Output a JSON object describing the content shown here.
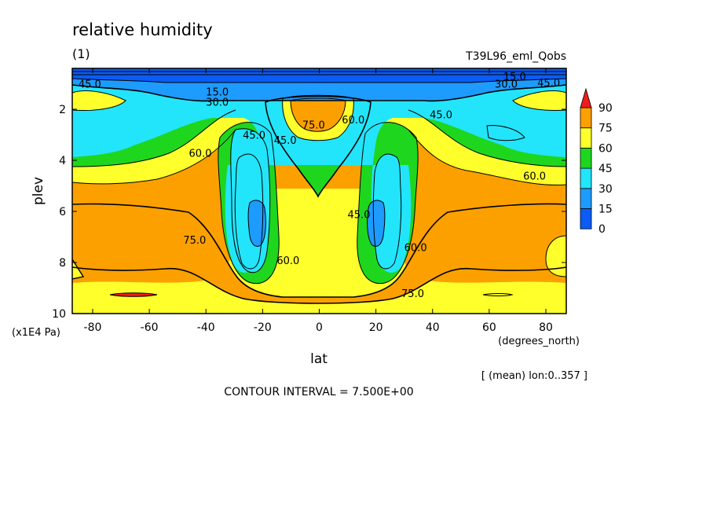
{
  "chart_data": {
    "type": "contour",
    "title": "relative humidity",
    "panel_label": "(1)",
    "run_label": "T39L96_eml_Qobs",
    "xlabel": "lat",
    "x_units": "(degrees_north)",
    "ylabel": "plev",
    "y_units": "(x1E4 Pa)",
    "subset_note": "[ (mean) lon:0..357 ]",
    "contour_interval_text": "CONTOUR INTERVAL = 7.500E+00",
    "x_ticks": [
      -80,
      -60,
      -40,
      -20,
      0,
      20,
      40,
      60,
      80
    ],
    "xlim": [
      -87.2,
      87.2
    ],
    "y_ticks": [
      2,
      4,
      6,
      8,
      10
    ],
    "ylim": [
      10,
      0.4
    ],
    "y_inverted": true,
    "colorbar": {
      "levels": [
        0,
        15,
        30,
        45,
        60,
        75,
        90
      ],
      "colors": [
        "#0a5cf5",
        "#1e9bff",
        "#22e5fb",
        "#1fd61f",
        "#ffff2c",
        "#fca000",
        "#ee1c1c"
      ]
    },
    "contour_labels": [
      {
        "text": "45.0",
        "lat": -81,
        "plev": 1.0
      },
      {
        "text": "15.0",
        "lat": -36,
        "plev": 1.3
      },
      {
        "text": "30.0",
        "lat": -36,
        "plev": 1.7
      },
      {
        "text": "60.0",
        "lat": -42,
        "plev": 3.7
      },
      {
        "text": "45.0",
        "lat": -23,
        "plev": 3.0
      },
      {
        "text": "45.0",
        "lat": -12,
        "plev": 3.2
      },
      {
        "text": "75.0",
        "lat": -2,
        "plev": 2.6
      },
      {
        "text": "60.0",
        "lat": 12,
        "plev": 2.4
      },
      {
        "text": "15.0",
        "lat": 69,
        "plev": 0.7
      },
      {
        "text": "30.0",
        "lat": 66,
        "plev": 1.0
      },
      {
        "text": "45.0",
        "lat": 81,
        "plev": 0.95
      },
      {
        "text": "45.0",
        "lat": 43,
        "plev": 2.2
      },
      {
        "text": "60.0",
        "lat": 76,
        "plev": 4.6
      },
      {
        "text": "45.0",
        "lat": 14,
        "plev": 6.1
      },
      {
        "text": "75.0",
        "lat": -44,
        "plev": 7.1
      },
      {
        "text": "60.0",
        "lat": -11,
        "plev": 7.9
      },
      {
        "text": "60.0",
        "lat": 34,
        "plev": 7.4
      },
      {
        "text": "75.0",
        "lat": 33,
        "plev": 9.2
      }
    ]
  }
}
